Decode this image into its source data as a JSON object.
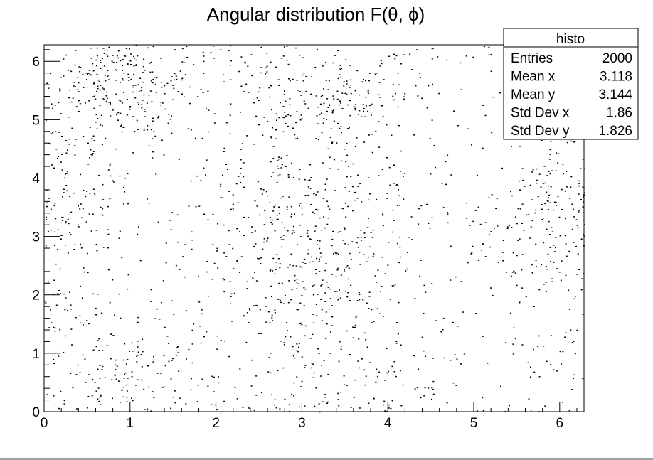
{
  "chart_data": {
    "type": "scatter",
    "title": "Angular distribution F(θ, ϕ)",
    "xlabel": "",
    "ylabel": "",
    "xlim": [
      0,
      6.283
    ],
    "ylim": [
      0,
      6.283
    ],
    "x_ticks": [
      "0",
      "1",
      "2",
      "3",
      "4",
      "5",
      "6"
    ],
    "y_ticks": [
      "0",
      "1",
      "2",
      "3",
      "4",
      "5",
      "6"
    ],
    "grid": false,
    "marker_color": "#000000",
    "stats_box": {
      "position": "top-right",
      "name": "histo",
      "rows": [
        {
          "label": "Entries",
          "value": "2000"
        },
        {
          "label": "Mean x",
          "value": "3.118"
        },
        {
          "label": "Mean y",
          "value": "3.144"
        },
        {
          "label": "Std Dev x",
          "value": "1.86"
        },
        {
          "label": "Std Dev y",
          "value": "1.826"
        }
      ]
    },
    "entries": 2000,
    "clusters": [
      {
        "x": 0.8,
        "y": 5.6,
        "sx": 0.55,
        "sy": 0.45,
        "weight": 0.14
      },
      {
        "x": 3.3,
        "y": 5.4,
        "sx": 0.6,
        "sy": 0.55,
        "weight": 0.12
      },
      {
        "x": 3.0,
        "y": 3.0,
        "sx": 0.75,
        "sy": 0.9,
        "weight": 0.26
      },
      {
        "x": 5.9,
        "y": 3.4,
        "sx": 0.5,
        "sy": 0.9,
        "weight": 0.13
      },
      {
        "x": 0.3,
        "y": 3.5,
        "sx": 0.35,
        "sy": 1.2,
        "weight": 0.07
      },
      {
        "x": 3.5,
        "y": 0.6,
        "sx": 1.0,
        "sy": 0.6,
        "weight": 0.1
      },
      {
        "x": 0.7,
        "y": 0.7,
        "sx": 0.6,
        "sy": 0.6,
        "weight": 0.08
      }
    ],
    "uniform_fraction": 0.1
  }
}
